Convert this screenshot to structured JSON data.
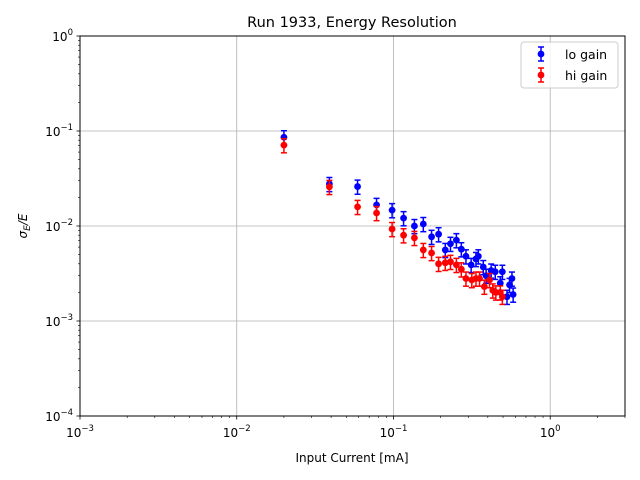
{
  "chart_data": {
    "type": "scatter",
    "title": "Run 1933, Energy Resolution",
    "xlabel": "Input Current [mA]",
    "ylabel_base": "σ",
    "ylabel_sub": "E",
    "ylabel_tail": "/E",
    "xscale": "log",
    "yscale": "log",
    "xlim": [
      0.001,
      3.0
    ],
    "ylim": [
      0.0001,
      1.0
    ],
    "grid": true,
    "legend_position": "top-right",
    "x_ticks": [
      {
        "value": 0.001,
        "base": "10",
        "exp": "−3"
      },
      {
        "value": 0.01,
        "base": "10",
        "exp": "−2"
      },
      {
        "value": 0.1,
        "base": "10",
        "exp": "−1"
      },
      {
        "value": 1.0,
        "base": "10",
        "exp": "0"
      }
    ],
    "y_ticks": [
      {
        "value": 0.0001,
        "base": "10",
        "exp": "−4"
      },
      {
        "value": 0.001,
        "base": "10",
        "exp": "−3"
      },
      {
        "value": 0.01,
        "base": "10",
        "exp": "−2"
      },
      {
        "value": 0.1,
        "base": "10",
        "exp": "−1"
      },
      {
        "value": 1.0,
        "base": "10",
        "exp": "0"
      }
    ],
    "series": [
      {
        "name": "lo gain",
        "color": "#0000ff",
        "marker": "circle",
        "errorbars": true,
        "x": [
          0.02,
          0.039,
          0.059,
          0.078,
          0.098,
          0.116,
          0.136,
          0.155,
          0.175,
          0.194,
          0.214,
          0.231,
          0.252,
          0.271,
          0.29,
          0.313,
          0.336,
          0.348,
          0.374,
          0.39,
          0.42,
          0.446,
          0.48,
          0.495,
          0.53,
          0.55,
          0.57,
          0.58
        ],
        "y": [
          0.086,
          0.0277,
          0.026,
          0.0167,
          0.0147,
          0.0121,
          0.01,
          0.0105,
          0.0077,
          0.0082,
          0.0056,
          0.0065,
          0.0071,
          0.0057,
          0.0048,
          0.0039,
          0.0045,
          0.0048,
          0.0037,
          0.003,
          0.0034,
          0.0033,
          0.0025,
          0.0033,
          0.0018,
          0.0024,
          0.0028,
          0.0019
        ],
        "yerr_frac": 0.17
      },
      {
        "name": "hi gain",
        "color": "#ff0000",
        "marker": "circle",
        "errorbars": true,
        "x": [
          0.02,
          0.039,
          0.059,
          0.078,
          0.098,
          0.116,
          0.136,
          0.155,
          0.175,
          0.194,
          0.214,
          0.231,
          0.252,
          0.271,
          0.29,
          0.316,
          0.336,
          0.354,
          0.38,
          0.41,
          0.43,
          0.45,
          0.48,
          0.495
        ],
        "y": [
          0.071,
          0.0258,
          0.0159,
          0.0137,
          0.0093,
          0.008,
          0.0075,
          0.0056,
          0.0052,
          0.004,
          0.0041,
          0.0042,
          0.0039,
          0.0035,
          0.0028,
          0.0027,
          0.0028,
          0.0028,
          0.0023,
          0.0027,
          0.0021,
          0.002,
          0.002,
          0.0018
        ],
        "yerr_frac": 0.17
      }
    ]
  }
}
